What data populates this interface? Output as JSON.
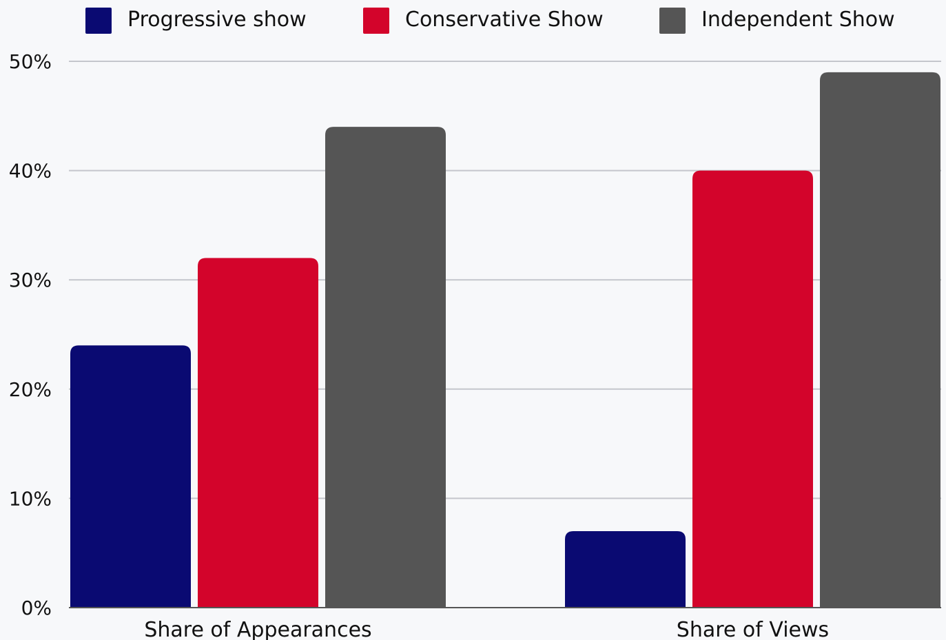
{
  "chart_data": {
    "type": "bar",
    "categories": [
      "Share of Appearances",
      "Share of Views"
    ],
    "series": [
      {
        "name": "Progressive show",
        "values": [
          24,
          7
        ],
        "color": "#0a0a72"
      },
      {
        "name": "Conservative Show",
        "values": [
          32,
          40
        ],
        "color": "#d3042b"
      },
      {
        "name": "Independent Show",
        "values": [
          44,
          49
        ],
        "color": "#555555"
      }
    ],
    "ylim": [
      0,
      50
    ],
    "y_ticks": [
      0,
      10,
      20,
      30,
      40,
      50
    ],
    "y_tick_labels": [
      "0%",
      "10%",
      "20%",
      "30%",
      "40%",
      "50%"
    ],
    "legend_position": "top",
    "grid": true,
    "title": "",
    "xlabel": "",
    "ylabel": ""
  }
}
